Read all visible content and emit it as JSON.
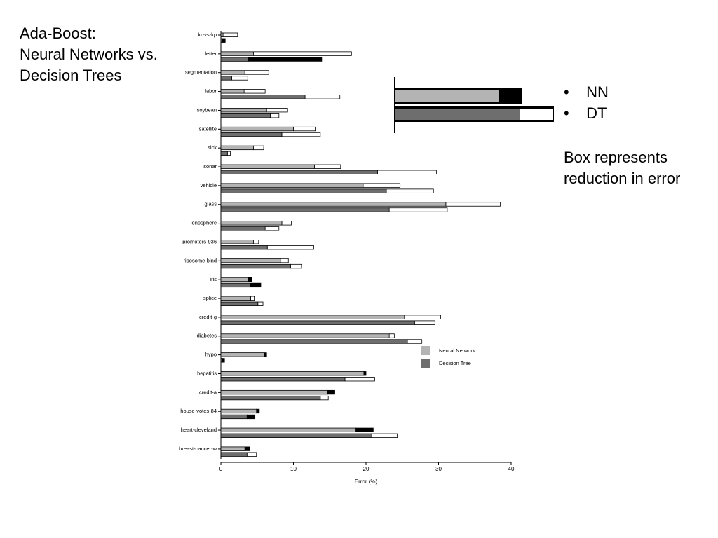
{
  "slide": {
    "title_lines": [
      "Ada-Boost:",
      "Neural Networks vs.",
      "Decision Trees"
    ],
    "bullets": [
      "NN",
      "DT"
    ],
    "note_lines": [
      "Box represents",
      "reduction in error"
    ]
  },
  "chart_data": {
    "type": "bar",
    "orientation": "horizontal",
    "x_label": "Error (%)",
    "categories": [
      "kr-vs-kp",
      "letter",
      "segmentation",
      "labor",
      "soybean",
      "satellite",
      "sick",
      "sonar",
      "vehicle",
      "glass",
      "ionosphere",
      "promoters-936",
      "ribosome-bind",
      "iris",
      "splice",
      "credit-g",
      "diabetes",
      "hypo",
      "hepatitis",
      "credit-a",
      "house-votes-84",
      "heart-cleveland",
      "breast-cancer-w"
    ],
    "series": [
      {
        "name": "Neural Network",
        "color": "#b4b4b4",
        "values": [
          0.3,
          4.5,
          3.3,
          3.2,
          6.3,
          10.0,
          4.5,
          12.9,
          19.6,
          31.0,
          8.4,
          4.5,
          8.2,
          3.8,
          4.1,
          25.3,
          23.2,
          6.0,
          19.7,
          14.7,
          4.9,
          18.6,
          3.3
        ],
        "box_values": [
          2.3,
          18.0,
          6.6,
          6.1,
          9.2,
          13.0,
          5.9,
          16.5,
          24.7,
          38.5,
          9.7,
          5.2,
          9.3,
          4.3,
          4.6,
          30.3,
          23.9,
          6.3,
          20.0,
          15.7,
          5.3,
          21.0,
          4.0
        ],
        "box_colors": [
          "#ffffff",
          "#ffffff",
          "#ffffff",
          "#ffffff",
          "#ffffff",
          "#ffffff",
          "#ffffff",
          "#ffffff",
          "#ffffff",
          "#ffffff",
          "#ffffff",
          "#ffffff",
          "#ffffff",
          "#000000",
          "#ffffff",
          "#ffffff",
          "#ffffff",
          "#000000",
          "#000000",
          "#000000",
          "#000000",
          "#000000",
          "#000000"
        ]
      },
      {
        "name": "Decision Tree",
        "color": "#6e6e6e",
        "values": [
          0.2,
          3.8,
          1.5,
          11.6,
          6.8,
          8.4,
          0.9,
          21.6,
          22.8,
          23.2,
          6.1,
          6.4,
          9.6,
          4.0,
          5.1,
          26.7,
          25.7,
          0.2,
          17.1,
          13.7,
          3.6,
          20.8,
          3.6
        ],
        "box_values": [
          0.6,
          13.9,
          3.7,
          16.4,
          8.0,
          13.7,
          1.3,
          29.7,
          29.3,
          31.2,
          8.0,
          12.8,
          11.1,
          5.5,
          5.8,
          29.5,
          27.7,
          0.5,
          21.2,
          14.8,
          4.7,
          24.3,
          4.9
        ],
        "box_colors": [
          "#000000",
          "#000000",
          "#ffffff",
          "#ffffff",
          "#ffffff",
          "#ffffff",
          "#ffffff",
          "#ffffff",
          "#ffffff",
          "#ffffff",
          "#ffffff",
          "#ffffff",
          "#ffffff",
          "#000000",
          "#ffffff",
          "#ffffff",
          "#ffffff",
          "#000000",
          "#ffffff",
          "#ffffff",
          "#000000",
          "#ffffff",
          "#ffffff"
        ]
      }
    ],
    "xlim": [
      0,
      40
    ],
    "xticks": [
      0,
      10,
      20,
      30,
      40
    ]
  }
}
